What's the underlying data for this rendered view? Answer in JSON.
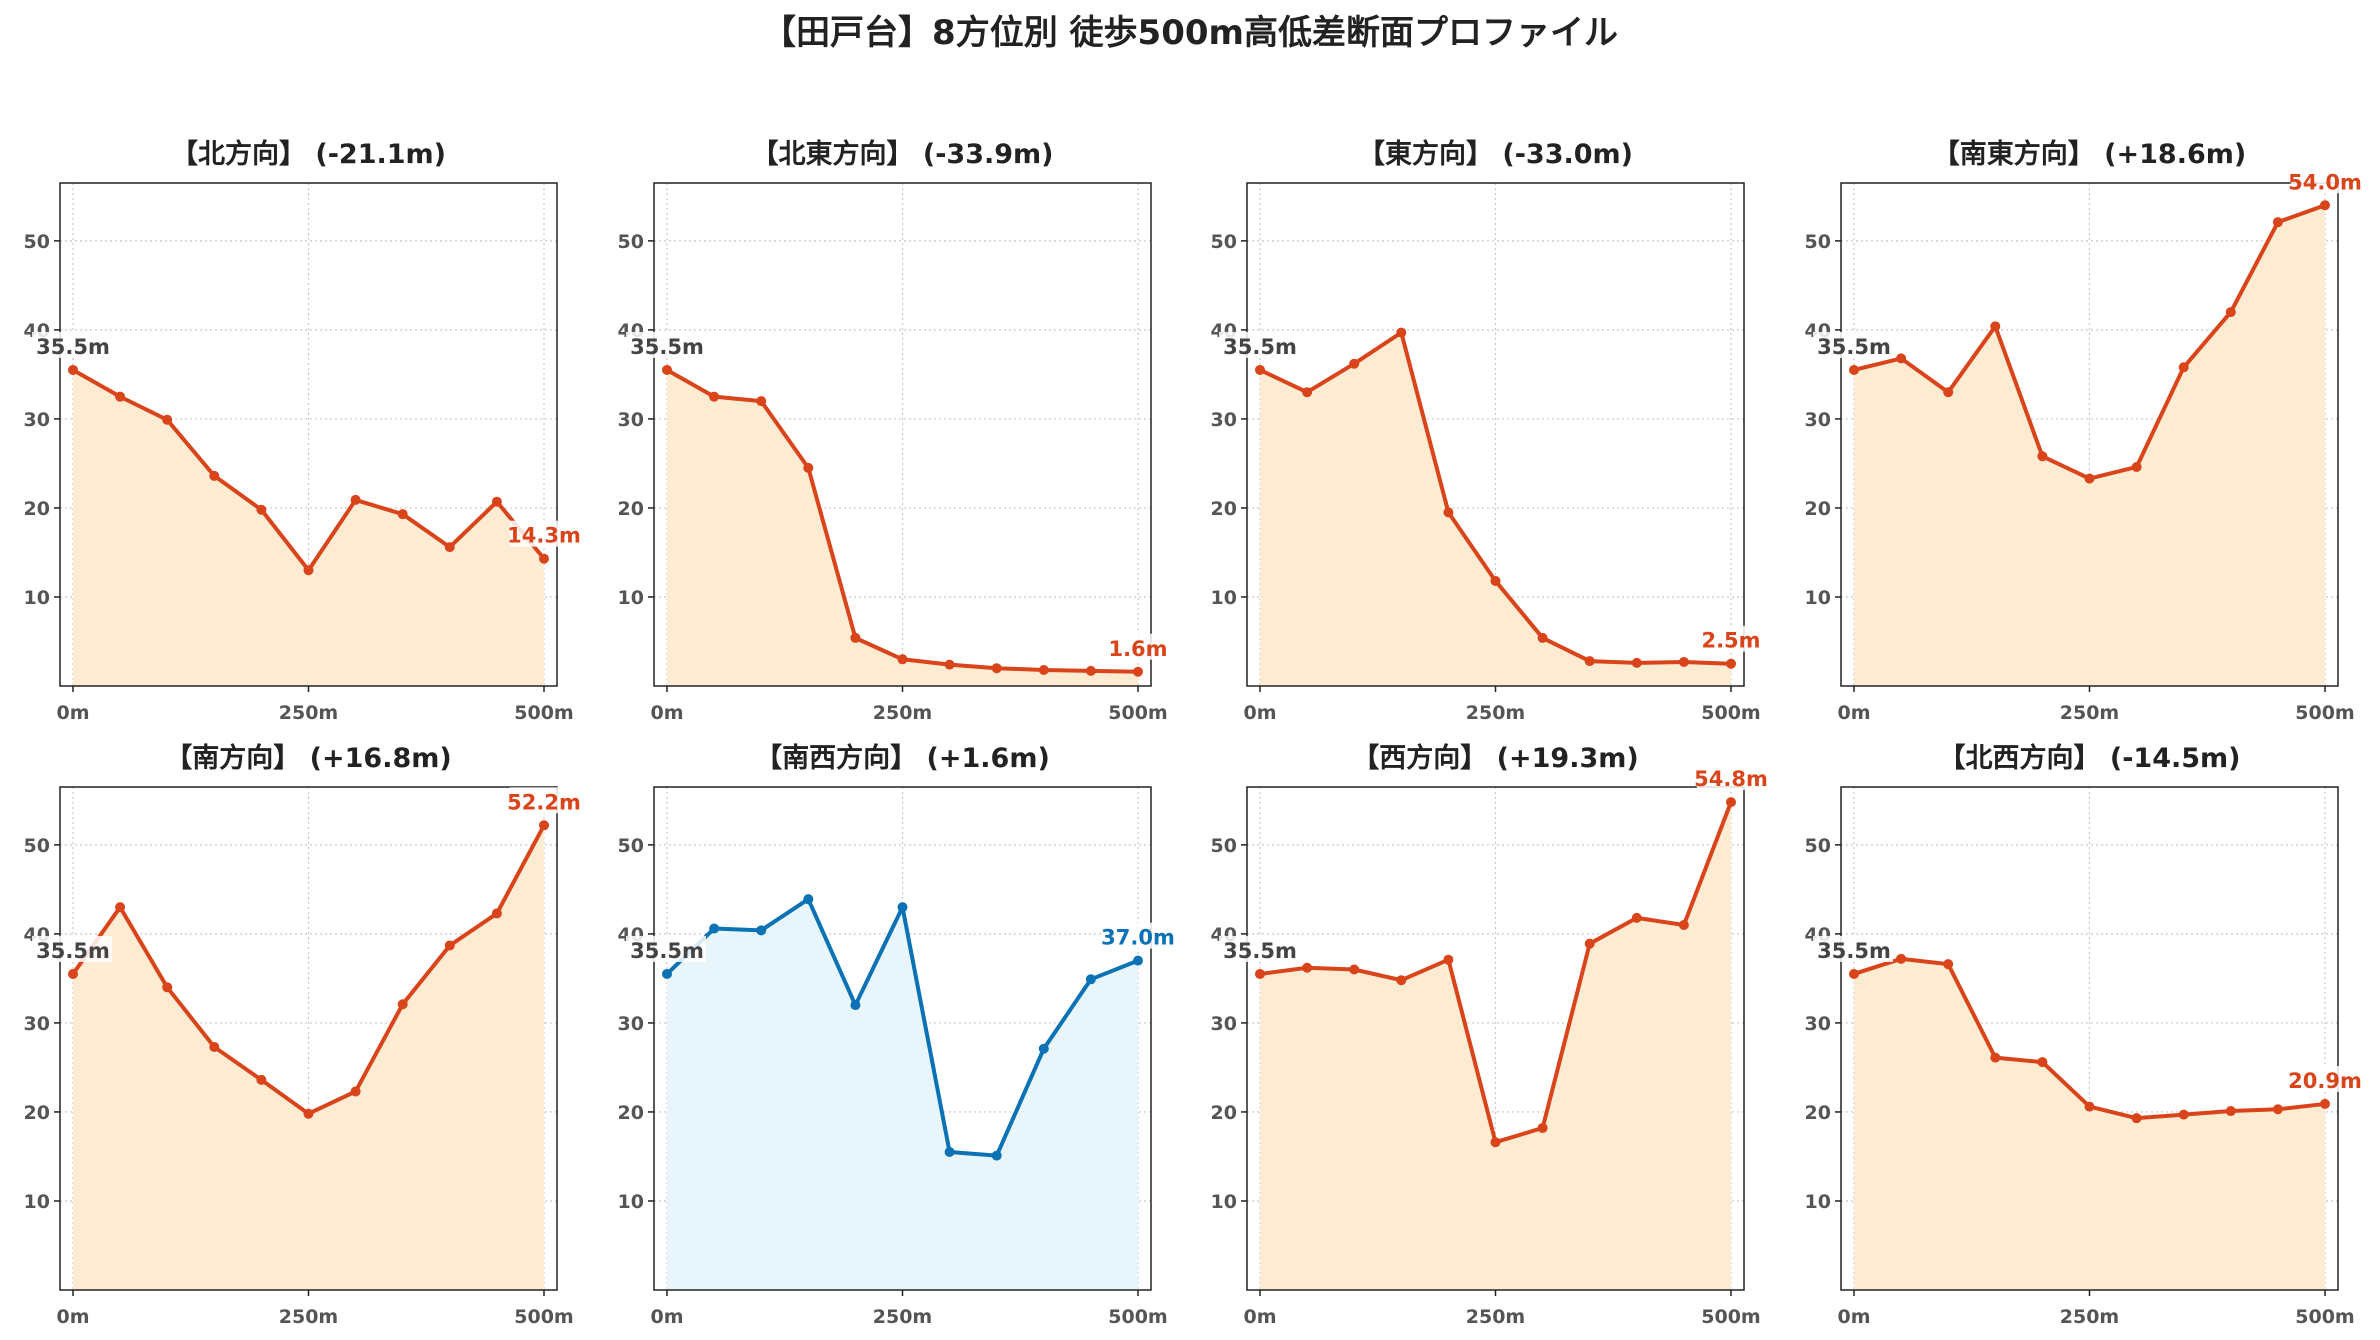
{
  "title": "【田戸台】8方位別 徒歩500m高低差断面プロファイル",
  "colors": {
    "descent_line": "#d9441a",
    "descent_fill": "#fdebd2",
    "ascent_line": "#0a72b5",
    "ascent_fill": "#e8f5fb",
    "grid": "#c8c8c8",
    "axis": "#222222"
  },
  "chart_data": [
    {
      "type": "area",
      "title": "【北方向】 (-21.1m)",
      "color": "orange",
      "x": [
        0,
        50,
        100,
        150,
        200,
        250,
        300,
        350,
        400,
        450,
        500
      ],
      "xticks": [
        "0m",
        "250m",
        "500m"
      ],
      "yticks": [
        10,
        20,
        30,
        40,
        50
      ],
      "ylim": [
        0,
        56.5
      ],
      "grid": true,
      "start_label": "35.5m",
      "end_label": "14.3m",
      "values": [
        35.5,
        32.5,
        29.9,
        23.6,
        19.8,
        13.0,
        20.9,
        19.3,
        15.6,
        20.7,
        14.3
      ]
    },
    {
      "type": "area",
      "title": "【北東方向】 (-33.9m)",
      "color": "orange",
      "x": [
        0,
        50,
        100,
        150,
        200,
        250,
        300,
        350,
        400,
        450,
        500
      ],
      "xticks": [
        "0m",
        "250m",
        "500m"
      ],
      "yticks": [
        10,
        20,
        30,
        40,
        50
      ],
      "ylim": [
        0,
        56.5
      ],
      "grid": true,
      "start_label": "35.5m",
      "end_label": "1.6m",
      "values": [
        35.5,
        32.5,
        32.0,
        24.5,
        5.4,
        3.0,
        2.4,
        2.0,
        1.8,
        1.7,
        1.6
      ]
    },
    {
      "type": "area",
      "title": "【東方向】 (-33.0m)",
      "color": "orange",
      "x": [
        0,
        50,
        100,
        150,
        200,
        250,
        300,
        350,
        400,
        450,
        500
      ],
      "xticks": [
        "0m",
        "250m",
        "500m"
      ],
      "yticks": [
        10,
        20,
        30,
        40,
        50
      ],
      "ylim": [
        0,
        56.5
      ],
      "grid": true,
      "start_label": "35.5m",
      "end_label": "2.5m",
      "values": [
        35.5,
        33.0,
        36.2,
        39.7,
        19.5,
        11.8,
        5.4,
        2.8,
        2.6,
        2.7,
        2.5
      ]
    },
    {
      "type": "area",
      "title": "【南東方向】 (+18.6m)",
      "color": "orange",
      "x": [
        0,
        50,
        100,
        150,
        200,
        250,
        300,
        350,
        400,
        450,
        500
      ],
      "xticks": [
        "0m",
        "250m",
        "500m"
      ],
      "yticks": [
        10,
        20,
        30,
        40,
        50
      ],
      "ylim": [
        0,
        56.5
      ],
      "grid": true,
      "start_label": "35.5m",
      "end_label": "54.0m",
      "values": [
        35.5,
        36.8,
        33.0,
        40.4,
        25.8,
        23.3,
        24.6,
        35.8,
        42.0,
        52.1,
        54.0
      ]
    },
    {
      "type": "area",
      "title": "【南方向】 (+16.8m)",
      "color": "orange",
      "x": [
        0,
        50,
        100,
        150,
        200,
        250,
        300,
        350,
        400,
        450,
        500
      ],
      "xticks": [
        "0m",
        "250m",
        "500m"
      ],
      "yticks": [
        10,
        20,
        30,
        40,
        50
      ],
      "ylim": [
        0,
        56.5
      ],
      "grid": true,
      "start_label": "35.5m",
      "end_label": "52.2m",
      "values": [
        35.5,
        43.0,
        34.0,
        27.3,
        23.6,
        19.8,
        22.3,
        32.1,
        38.7,
        42.3,
        52.2
      ]
    },
    {
      "type": "area",
      "title": "【南西方向】 (+1.6m)",
      "color": "blue",
      "x": [
        0,
        50,
        100,
        150,
        200,
        250,
        300,
        350,
        400,
        450,
        500
      ],
      "xticks": [
        "0m",
        "250m",
        "500m"
      ],
      "yticks": [
        10,
        20,
        30,
        40,
        50
      ],
      "ylim": [
        0,
        56.5
      ],
      "grid": true,
      "start_label": "35.5m",
      "end_label": "37.0m",
      "values": [
        35.5,
        40.6,
        40.4,
        43.9,
        32.0,
        43.0,
        15.5,
        15.1,
        27.1,
        34.9,
        37.0
      ]
    },
    {
      "type": "area",
      "title": "【西方向】 (+19.3m)",
      "color": "orange",
      "x": [
        0,
        50,
        100,
        150,
        200,
        250,
        300,
        350,
        400,
        450,
        500
      ],
      "xticks": [
        "0m",
        "250m",
        "500m"
      ],
      "yticks": [
        10,
        20,
        30,
        40,
        50
      ],
      "ylim": [
        0,
        56.5
      ],
      "grid": true,
      "start_label": "35.5m",
      "end_label": "54.8m",
      "values": [
        35.5,
        36.2,
        36.0,
        34.8,
        37.1,
        16.6,
        18.2,
        38.9,
        41.8,
        41.0,
        54.8
      ]
    },
    {
      "type": "area",
      "title": "【北西方向】 (-14.5m)",
      "color": "orange",
      "x": [
        0,
        50,
        100,
        150,
        200,
        250,
        300,
        350,
        400,
        450,
        500
      ],
      "xticks": [
        "0m",
        "250m",
        "500m"
      ],
      "yticks": [
        10,
        20,
        30,
        40,
        50
      ],
      "ylim": [
        0,
        56.5
      ],
      "grid": true,
      "start_label": "35.5m",
      "end_label": "20.9m",
      "values": [
        35.5,
        37.2,
        36.6,
        26.1,
        25.6,
        20.6,
        19.3,
        19.7,
        20.1,
        20.3,
        20.9
      ]
    }
  ]
}
